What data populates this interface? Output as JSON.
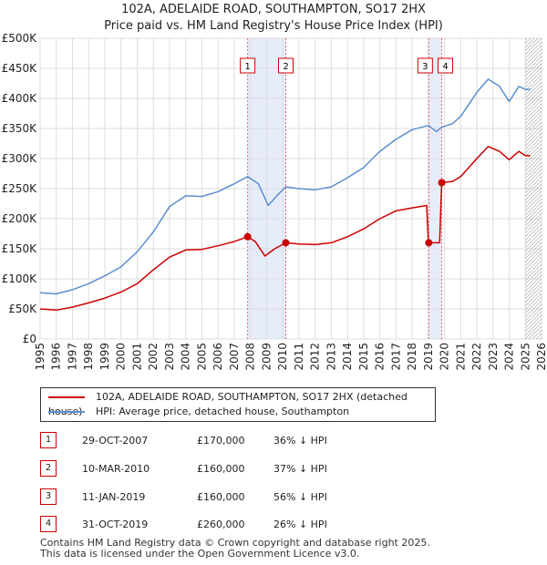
{
  "chart_data": {
    "type": "line",
    "title": "102A, ADELAIDE ROAD, SOUTHAMPTON, SO17 2HX",
    "subtitle": "Price paid vs. HM Land Registry's House Price Index (HPI)",
    "xlabel": "",
    "ylabel": "",
    "xlim": [
      1995,
      2026
    ],
    "ylim": [
      0,
      500000
    ],
    "grid": true,
    "x_ticks": [
      "1995",
      "1996",
      "1997",
      "1998",
      "1999",
      "2000",
      "2001",
      "2002",
      "2003",
      "2004",
      "2005",
      "2006",
      "2007",
      "2008",
      "2009",
      "2010",
      "2011",
      "2012",
      "2013",
      "2014",
      "2015",
      "2016",
      "2017",
      "2018",
      "2019",
      "2020",
      "2021",
      "2022",
      "2023",
      "2024",
      "2025",
      "2026"
    ],
    "y_ticks": [
      {
        "value": 0,
        "label": "£0"
      },
      {
        "value": 50000,
        "label": "£50K"
      },
      {
        "value": 100000,
        "label": "£100K"
      },
      {
        "value": 150000,
        "label": "£150K"
      },
      {
        "value": 200000,
        "label": "£200K"
      },
      {
        "value": 250000,
        "label": "£250K"
      },
      {
        "value": 300000,
        "label": "£300K"
      },
      {
        "value": 350000,
        "label": "£350K"
      },
      {
        "value": 400000,
        "label": "£400K"
      },
      {
        "value": 450000,
        "label": "£450K"
      },
      {
        "value": 500000,
        "label": "£500K"
      }
    ],
    "shaded_ranges": [
      [
        2007.83,
        2010.19
      ],
      [
        2019.03,
        2019.83
      ]
    ],
    "future_hatch_from": 2025.0,
    "series": [
      {
        "name": "102A, ADELAIDE ROAD, SOUTHAMPTON, SO17 2HX (detached house)",
        "color": "#cc0000",
        "points": [
          [
            1995,
            50000
          ],
          [
            1996,
            48000
          ],
          [
            1997,
            53000
          ],
          [
            1998,
            60000
          ],
          [
            1999,
            68000
          ],
          [
            2000,
            78000
          ],
          [
            2001,
            92000
          ],
          [
            2002,
            115000
          ],
          [
            2003,
            136000
          ],
          [
            2004,
            148000
          ],
          [
            2005,
            149000
          ],
          [
            2006,
            155000
          ],
          [
            2007,
            162000
          ],
          [
            2007.83,
            170000
          ],
          [
            2008.3,
            162000
          ],
          [
            2008.9,
            138000
          ],
          [
            2009.5,
            150000
          ],
          [
            2010.19,
            160000
          ],
          [
            2011,
            158000
          ],
          [
            2012,
            157000
          ],
          [
            2013,
            160000
          ],
          [
            2014,
            170000
          ],
          [
            2015,
            183000
          ],
          [
            2016,
            200000
          ],
          [
            2017,
            213000
          ],
          [
            2018,
            218000
          ],
          [
            2018.9,
            222000
          ],
          [
            2019.0,
            165000
          ],
          [
            2019.03,
            160000
          ],
          [
            2019.7,
            160000
          ],
          [
            2019.83,
            260000
          ],
          [
            2020.5,
            262000
          ],
          [
            2021,
            270000
          ],
          [
            2022,
            300000
          ],
          [
            2022.7,
            320000
          ],
          [
            2023.4,
            312000
          ],
          [
            2024,
            298000
          ],
          [
            2024.6,
            312000
          ],
          [
            2025,
            305000
          ],
          [
            2025.3,
            305000
          ]
        ]
      },
      {
        "name": "HPI: Average price, detached house, Southampton",
        "color": "#5b8fce",
        "points": [
          [
            1995,
            77000
          ],
          [
            1996,
            75000
          ],
          [
            1997,
            82000
          ],
          [
            1998,
            92000
          ],
          [
            1999,
            105000
          ],
          [
            2000,
            120000
          ],
          [
            2001,
            145000
          ],
          [
            2002,
            178000
          ],
          [
            2003,
            220000
          ],
          [
            2004,
            238000
          ],
          [
            2005,
            237000
          ],
          [
            2006,
            245000
          ],
          [
            2007,
            258000
          ],
          [
            2007.83,
            270000
          ],
          [
            2008.5,
            258000
          ],
          [
            2009.1,
            222000
          ],
          [
            2009.7,
            240000
          ],
          [
            2010.19,
            253000
          ],
          [
            2011,
            250000
          ],
          [
            2012,
            248000
          ],
          [
            2013,
            253000
          ],
          [
            2014,
            268000
          ],
          [
            2015,
            285000
          ],
          [
            2016,
            312000
          ],
          [
            2017,
            332000
          ],
          [
            2018,
            348000
          ],
          [
            2019,
            355000
          ],
          [
            2019.5,
            345000
          ],
          [
            2019.83,
            352000
          ],
          [
            2020.5,
            358000
          ],
          [
            2021,
            370000
          ],
          [
            2022,
            410000
          ],
          [
            2022.7,
            432000
          ],
          [
            2023.4,
            420000
          ],
          [
            2024,
            395000
          ],
          [
            2024.6,
            420000
          ],
          [
            2025,
            415000
          ],
          [
            2025.3,
            415000
          ]
        ]
      }
    ],
    "markers": [
      {
        "id": "1",
        "x": 2007.83,
        "y": 170000
      },
      {
        "id": "2",
        "x": 2010.19,
        "y": 160000
      },
      {
        "id": "3",
        "x": 2019.03,
        "y": 160000
      },
      {
        "id": "4",
        "x": 2019.83,
        "y": 260000
      }
    ]
  },
  "legend": {
    "items": [
      {
        "label": "102A, ADELAIDE ROAD, SOUTHAMPTON, SO17 2HX (detached house)",
        "color": "#cc0000"
      },
      {
        "label": "HPI: Average price, detached house, Southampton",
        "color": "#5b8fce"
      }
    ]
  },
  "transactions": [
    {
      "num": "1",
      "date": "29-OCT-2007",
      "price": "£170,000",
      "hpi": "36% ↓ HPI"
    },
    {
      "num": "2",
      "date": "10-MAR-2010",
      "price": "£160,000",
      "hpi": "37% ↓ HPI"
    },
    {
      "num": "3",
      "date": "11-JAN-2019",
      "price": "£160,000",
      "hpi": "56% ↓ HPI"
    },
    {
      "num": "4",
      "date": "31-OCT-2019",
      "price": "£260,000",
      "hpi": "26% ↓ HPI"
    }
  ],
  "footer": {
    "line1": "Contains HM Land Registry data © Crown copyright and database right 2025.",
    "line2": "This data is licensed under the Open Government Licence v3.0."
  }
}
